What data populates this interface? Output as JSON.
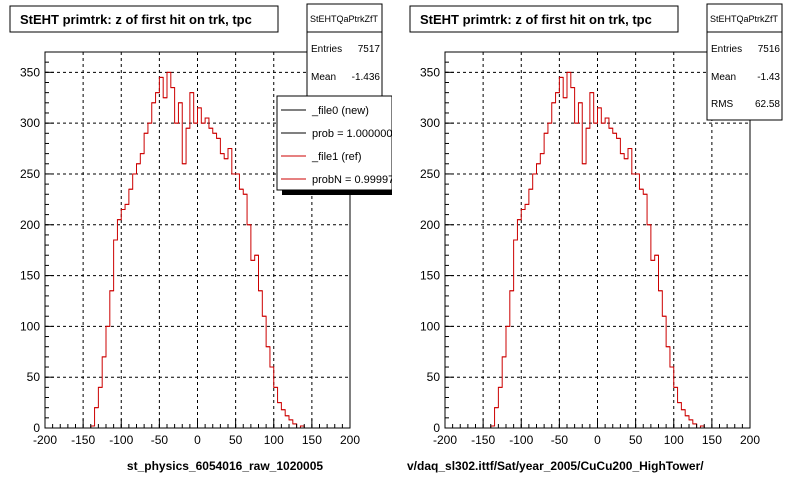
{
  "chart_data": [
    {
      "type": "histogram",
      "title": "StEHT primtrk: z of first hit on trk, tpc",
      "xlabel": "st_physics_6054016_raw_1020005",
      "xlim": [
        -200,
        200
      ],
      "ylim": [
        0,
        370
      ],
      "xticks": [
        -200,
        -150,
        -100,
        -50,
        0,
        50,
        100,
        150,
        200
      ],
      "yticks": [
        0,
        50,
        100,
        150,
        200,
        250,
        300,
        350
      ],
      "grid": true,
      "stats": {
        "name": "StEHTQaPtrkZfT",
        "rows": [
          {
            "label": "Entries",
            "value": "7517"
          },
          {
            "label": "Mean",
            "value": "-1.436"
          }
        ]
      },
      "legend": {
        "placement": "top-right",
        "entries": [
          {
            "label": "_file0 (new)",
            "color": "#000000"
          },
          {
            "label": "prob = 1.000000",
            "color": "#000000"
          },
          {
            "label": "_file1 (ref)",
            "color": "#cc0000"
          },
          {
            "label": "probN = 0.999975",
            "color": "#cc0000"
          }
        ]
      },
      "bin_width": 5,
      "series": [
        {
          "color": "#cc0000",
          "bins": [
            {
              "x0": -140,
              "y": 2
            },
            {
              "x0": -135,
              "y": 20
            },
            {
              "x0": -130,
              "y": 40
            },
            {
              "x0": -125,
              "y": 70
            },
            {
              "x0": -120,
              "y": 100
            },
            {
              "x0": -115,
              "y": 135
            },
            {
              "x0": -110,
              "y": 185
            },
            {
              "x0": -105,
              "y": 205
            },
            {
              "x0": -100,
              "y": 215
            },
            {
              "x0": -95,
              "y": 220
            },
            {
              "x0": -90,
              "y": 235
            },
            {
              "x0": -85,
              "y": 250
            },
            {
              "x0": -80,
              "y": 260
            },
            {
              "x0": -75,
              "y": 270
            },
            {
              "x0": -70,
              "y": 290
            },
            {
              "x0": -65,
              "y": 300
            },
            {
              "x0": -60,
              "y": 320
            },
            {
              "x0": -55,
              "y": 330
            },
            {
              "x0": -50,
              "y": 345
            },
            {
              "x0": -45,
              "y": 325
            },
            {
              "x0": -40,
              "y": 350
            },
            {
              "x0": -35,
              "y": 335
            },
            {
              "x0": -30,
              "y": 300
            },
            {
              "x0": -25,
              "y": 320
            },
            {
              "x0": -20,
              "y": 260
            },
            {
              "x0": -15,
              "y": 295
            },
            {
              "x0": -10,
              "y": 330
            },
            {
              "x0": -5,
              "y": 300
            },
            {
              "x0": 0,
              "y": 315
            },
            {
              "x0": 5,
              "y": 300
            },
            {
              "x0": 10,
              "y": 305
            },
            {
              "x0": 15,
              "y": 295
            },
            {
              "x0": 20,
              "y": 290
            },
            {
              "x0": 25,
              "y": 285
            },
            {
              "x0": 30,
              "y": 270
            },
            {
              "x0": 35,
              "y": 265
            },
            {
              "x0": 40,
              "y": 275
            },
            {
              "x0": 45,
              "y": 250
            },
            {
              "x0": 50,
              "y": 250
            },
            {
              "x0": 55,
              "y": 235
            },
            {
              "x0": 60,
              "y": 230
            },
            {
              "x0": 65,
              "y": 200
            },
            {
              "x0": 70,
              "y": 165
            },
            {
              "x0": 75,
              "y": 170
            },
            {
              "x0": 80,
              "y": 135
            },
            {
              "x0": 85,
              "y": 110
            },
            {
              "x0": 90,
              "y": 80
            },
            {
              "x0": 95,
              "y": 60
            },
            {
              "x0": 100,
              "y": 40
            },
            {
              "x0": 105,
              "y": 25
            },
            {
              "x0": 110,
              "y": 18
            },
            {
              "x0": 115,
              "y": 12
            },
            {
              "x0": 120,
              "y": 8
            },
            {
              "x0": 125,
              "y": 4
            },
            {
              "x0": 130,
              "y": 0
            },
            {
              "x0": 135,
              "y": 2
            }
          ]
        }
      ]
    },
    {
      "type": "histogram",
      "title": "StEHT primtrk: z of first hit on trk, tpc",
      "xlabel": "v/daq_sl302.ittf/Sat/year_2005/CuCu200_HighTower/",
      "xlim": [
        -200,
        200
      ],
      "ylim": [
        0,
        370
      ],
      "xticks": [
        -200,
        -150,
        -100,
        -50,
        0,
        50,
        100,
        150,
        200
      ],
      "yticks": [
        0,
        50,
        100,
        150,
        200,
        250,
        300,
        350
      ],
      "grid": true,
      "stats": {
        "name": "StEHTQaPtrkZfT",
        "rows": [
          {
            "label": "Entries",
            "value": "7516"
          },
          {
            "label": "Mean",
            "value": "-1.43"
          },
          {
            "label": "RMS",
            "value": "62.58"
          }
        ]
      },
      "bin_width": 5,
      "series": [
        {
          "color": "#cc0000",
          "bins": [
            {
              "x0": -140,
              "y": 2
            },
            {
              "x0": -135,
              "y": 20
            },
            {
              "x0": -130,
              "y": 40
            },
            {
              "x0": -125,
              "y": 70
            },
            {
              "x0": -120,
              "y": 100
            },
            {
              "x0": -115,
              "y": 135
            },
            {
              "x0": -110,
              "y": 185
            },
            {
              "x0": -105,
              "y": 205
            },
            {
              "x0": -100,
              "y": 215
            },
            {
              "x0": -95,
              "y": 220
            },
            {
              "x0": -90,
              "y": 235
            },
            {
              "x0": -85,
              "y": 250
            },
            {
              "x0": -80,
              "y": 260
            },
            {
              "x0": -75,
              "y": 270
            },
            {
              "x0": -70,
              "y": 290
            },
            {
              "x0": -65,
              "y": 300
            },
            {
              "x0": -60,
              "y": 320
            },
            {
              "x0": -55,
              "y": 330
            },
            {
              "x0": -50,
              "y": 345
            },
            {
              "x0": -45,
              "y": 325
            },
            {
              "x0": -40,
              "y": 350
            },
            {
              "x0": -35,
              "y": 335
            },
            {
              "x0": -30,
              "y": 300
            },
            {
              "x0": -25,
              "y": 320
            },
            {
              "x0": -20,
              "y": 260
            },
            {
              "x0": -15,
              "y": 295
            },
            {
              "x0": -10,
              "y": 330
            },
            {
              "x0": -5,
              "y": 300
            },
            {
              "x0": 0,
              "y": 315
            },
            {
              "x0": 5,
              "y": 300
            },
            {
              "x0": 10,
              "y": 305
            },
            {
              "x0": 15,
              "y": 295
            },
            {
              "x0": 20,
              "y": 290
            },
            {
              "x0": 25,
              "y": 285
            },
            {
              "x0": 30,
              "y": 270
            },
            {
              "x0": 35,
              "y": 265
            },
            {
              "x0": 40,
              "y": 275
            },
            {
              "x0": 45,
              "y": 250
            },
            {
              "x0": 50,
              "y": 250
            },
            {
              "x0": 55,
              "y": 235
            },
            {
              "x0": 60,
              "y": 230
            },
            {
              "x0": 65,
              "y": 200
            },
            {
              "x0": 70,
              "y": 165
            },
            {
              "x0": 75,
              "y": 170
            },
            {
              "x0": 80,
              "y": 135
            },
            {
              "x0": 85,
              "y": 110
            },
            {
              "x0": 90,
              "y": 80
            },
            {
              "x0": 95,
              "y": 60
            },
            {
              "x0": 100,
              "y": 40
            },
            {
              "x0": 105,
              "y": 25
            },
            {
              "x0": 110,
              "y": 18
            },
            {
              "x0": 115,
              "y": 12
            },
            {
              "x0": 120,
              "y": 8
            },
            {
              "x0": 125,
              "y": 4
            },
            {
              "x0": 130,
              "y": 0
            },
            {
              "x0": 135,
              "y": 2
            }
          ]
        }
      ]
    }
  ]
}
